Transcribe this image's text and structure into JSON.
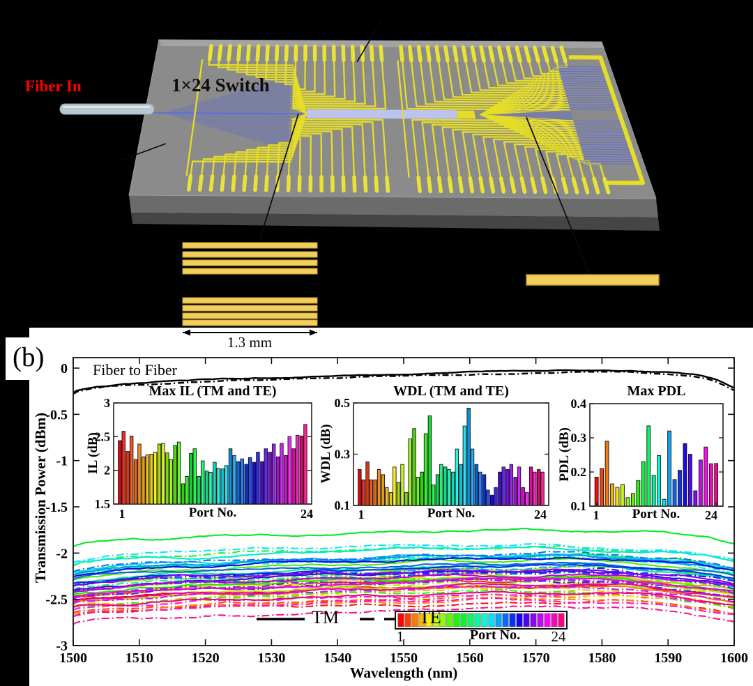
{
  "panel_top": {
    "fiber_in_label": "Fiber In",
    "switch_label": "1×24 Switch",
    "scale_label": "1.3 mm",
    "colors": {
      "electrode": "#e6dd28",
      "pad": "#ebe334",
      "substrate_top": "#8b8b8b",
      "substrate_front": "#6b6b6b",
      "substrate_front_dark": "#454545",
      "waveguide_blue": "#5566f0",
      "mmi_band": "#bcc3ee",
      "fiber_body": "#b9c7d1",
      "fiber_in_text": "#ff0000"
    }
  },
  "panel_b": {
    "label": "(b)",
    "annotation": "Fiber to Fiber",
    "legend": {
      "tm": "TM",
      "te": "TE"
    },
    "colorbar": {
      "label": "Port No.",
      "min": "1",
      "max": "24"
    }
  },
  "chart_data": {
    "main": {
      "type": "line",
      "xlabel": "Wavelength (nm)",
      "ylabel": "Transmission Power (dBm)",
      "annotation": "Fiber to Fiber",
      "xlim": [
        1500,
        1600
      ],
      "ylim": [
        -3,
        0.11
      ],
      "xticks": [
        1500,
        1510,
        1520,
        1530,
        1540,
        1550,
        1560,
        1570,
        1580,
        1590,
        1600
      ],
      "ytick_labels": [
        "0",
        "-0.5",
        "-1",
        "-1.5",
        "-2",
        "-2.5",
        "-3"
      ],
      "ytick_values": [
        0,
        -0.5,
        -1,
        -1.5,
        -2,
        -2.5,
        -3
      ],
      "fiber_to_fiber": {
        "tm_peak": -0.045,
        "te_offset": -0.02,
        "color": "#000000"
      },
      "port_hues": [
        0,
        14,
        29,
        43,
        57,
        72,
        86,
        100,
        115,
        129,
        143,
        158,
        172,
        186,
        201,
        215,
        229,
        244,
        258,
        272,
        287,
        301,
        315,
        330
      ],
      "tm_peaks": [
        -2.35,
        -2.3,
        -2.38,
        -2.25,
        -2.3,
        -2.35,
        -2.18,
        -2.1,
        -2.28,
        -1.75,
        -2.05,
        -2.15,
        -1.95,
        -2.02,
        -2.05,
        -2.1,
        -2.15,
        -2.08,
        -2.22,
        -2.18,
        -2.25,
        -2.3,
        -2.35,
        -2.42
      ],
      "te_peaks": [
        -2.52,
        -2.48,
        -2.5,
        -2.4,
        -2.45,
        -2.28,
        -2.32,
        -2.25,
        -2.42,
        -1.95,
        -2.22,
        -2.05,
        -2.08,
        -1.92,
        -2.15,
        -2.02,
        -2.25,
        -2.18,
        -2.32,
        -2.3,
        -2.38,
        -2.45,
        -2.52,
        -2.6
      ]
    },
    "inset_il": {
      "type": "bar",
      "title": "Max IL (TM and TE)",
      "ylabel": "IL (dB)",
      "xlabel": "Port No.",
      "xtick_first": "1",
      "xtick_last": "24",
      "ylim": [
        1.5,
        3
      ],
      "ytick_labels": [
        "3",
        "2.5",
        "2",
        "1.5"
      ],
      "ytick_values": [
        3,
        2.5,
        2,
        1.5
      ],
      "categories": [
        1,
        2,
        3,
        4,
        5,
        6,
        7,
        8,
        9,
        10,
        11,
        12,
        13,
        14,
        15,
        16,
        17,
        18,
        19,
        20,
        21,
        22,
        23,
        24
      ],
      "series": [
        {
          "name": "TM",
          "values": [
            2.44,
            2.28,
            2.16,
            2.2,
            2.24,
            2.39,
            2.26,
            2.37,
            1.8,
            2.25,
            1.91,
            1.99,
            2.12,
            2.02,
            2.32,
            2.13,
            2.09,
            2.12,
            2.13,
            2.27,
            2.2,
            2.22,
            2.32,
            2.51
          ]
        },
        {
          "name": "TE",
          "values": [
            2.58,
            2.51,
            2.39,
            2.23,
            2.27,
            2.4,
            2.16,
            2.42,
            1.91,
            2.32,
            2.14,
            1.97,
            2.03,
            2.07,
            2.22,
            2.17,
            2.19,
            2.27,
            2.32,
            2.39,
            2.4,
            2.5,
            2.52,
            2.68
          ]
        }
      ]
    },
    "inset_wdl": {
      "type": "bar",
      "title": "WDL (TM and TE)",
      "ylabel": "WDL (dB)",
      "xlabel": "Port No.",
      "xtick_first": "1",
      "xtick_last": "24",
      "ylim": [
        0.1,
        0.5
      ],
      "ytick_labels": [
        "0.5",
        "0.3",
        "0.1"
      ],
      "ytick_values": [
        0.5,
        0.3,
        0.1
      ],
      "categories": [
        1,
        2,
        3,
        4,
        5,
        6,
        7,
        8,
        9,
        10,
        11,
        12,
        13,
        14,
        15,
        16,
        17,
        18,
        19,
        20,
        21,
        22,
        23,
        24
      ],
      "series": [
        {
          "name": "TM",
          "values": [
            0.24,
            0.27,
            0.2,
            0.22,
            0.15,
            0.19,
            0.15,
            0.4,
            0.23,
            0.45,
            0.22,
            0.25,
            0.23,
            0.26,
            0.48,
            0.26,
            0.22,
            0.14,
            0.23,
            0.24,
            0.21,
            0.17,
            0.25,
            0.24
          ]
        },
        {
          "name": "TE",
          "values": [
            0.2,
            0.2,
            0.24,
            0.17,
            0.25,
            0.26,
            0.36,
            0.21,
            0.38,
            0.18,
            0.26,
            0.24,
            0.32,
            0.41,
            0.32,
            0.23,
            0.16,
            0.17,
            0.25,
            0.26,
            0.25,
            0.15,
            0.23,
            0.23
          ]
        }
      ]
    },
    "inset_pdl": {
      "type": "bar",
      "title": "Max PDL",
      "ylabel": "PDL (dB)",
      "xlabel": "Port No.",
      "xtick_first": "1",
      "xtick_last": "24",
      "ylim": [
        0.1,
        0.4
      ],
      "ytick_labels": [
        "0.4",
        "0.3",
        "0.2",
        "0.1"
      ],
      "ytick_values": [
        0.4,
        0.3,
        0.2,
        0.1
      ],
      "categories": [
        1,
        2,
        3,
        4,
        5,
        6,
        7,
        8,
        9,
        10,
        11,
        12,
        13,
        14,
        15,
        16,
        17,
        18,
        19,
        20,
        21,
        22,
        23,
        24
      ],
      "values": [
        0.185,
        0.21,
        0.29,
        0.165,
        0.155,
        0.163,
        0.125,
        0.137,
        0.175,
        0.23,
        0.335,
        0.19,
        0.248,
        0.12,
        0.32,
        0.178,
        0.205,
        0.283,
        0.252,
        0.145,
        0.235,
        0.273,
        0.224,
        0.225
      ]
    }
  }
}
